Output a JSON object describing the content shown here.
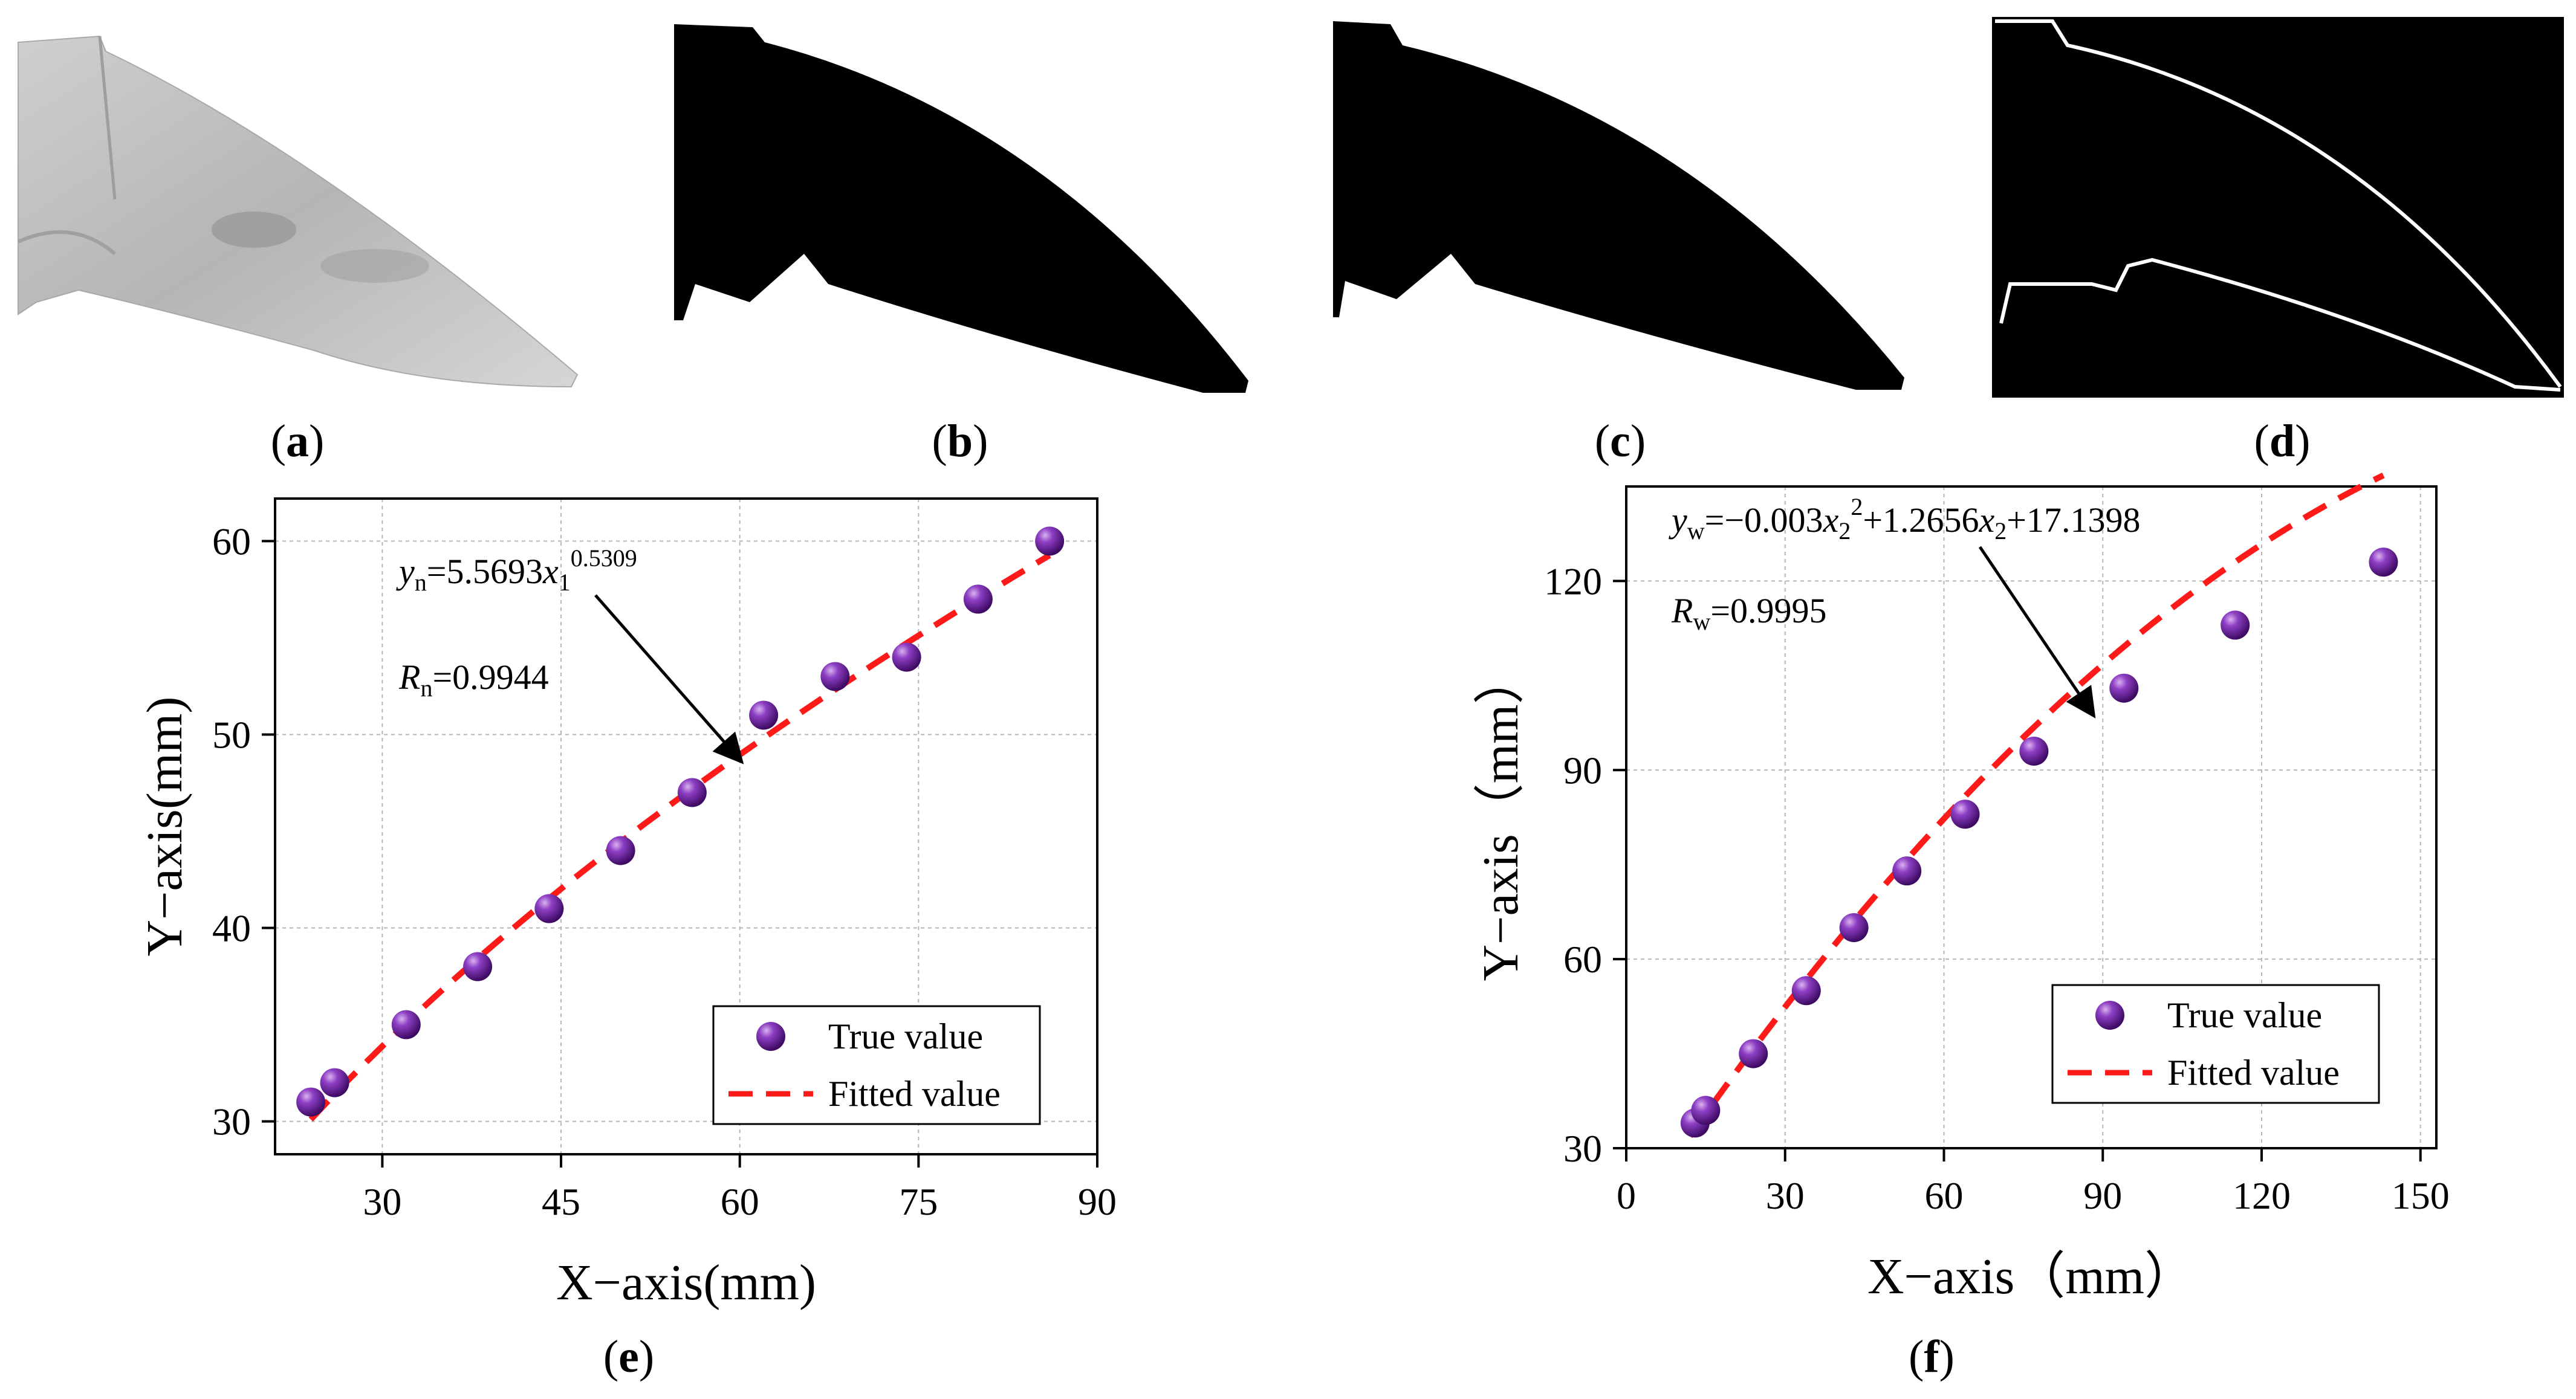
{
  "panels": {
    "a": {
      "label": "a",
      "description": "grayscale photo of claw"
    },
    "b": {
      "label": "b"
    },
    "c": {
      "label": "c"
    },
    "d": {
      "label": "d"
    },
    "e": {
      "label": "e"
    },
    "f": {
      "label": "f"
    }
  },
  "chart_data": [
    {
      "id": "e",
      "type": "scatter",
      "xlabel": "X−axis(mm)",
      "ylabel": "Y−axis(mm)",
      "xlim": [
        21,
        90
      ],
      "ylim": [
        28.3,
        62.2
      ],
      "xticks": [
        30,
        45,
        60,
        75,
        90
      ],
      "yticks": [
        30,
        40,
        50,
        60
      ],
      "grid": true,
      "legend_position": "bottom-right",
      "series": [
        {
          "name": "True value",
          "kind": "points",
          "color": "#6a1b9a",
          "x": [
            24,
            26,
            32,
            38,
            44,
            50,
            56,
            62,
            68,
            74,
            80,
            86
          ],
          "y": [
            31,
            32,
            35,
            38,
            41,
            44,
            47,
            51,
            53,
            54,
            57,
            60
          ]
        },
        {
          "name": "Fitted value",
          "kind": "dashed-line",
          "color": "#ff1a1a",
          "model": "power",
          "a": 5.5693,
          "b": 0.5309,
          "x_range": [
            24,
            86
          ]
        }
      ],
      "equation": {
        "y": "y",
        "ysub": "n",
        "rhs": "=5.5693",
        "x": "x",
        "xsub": "1",
        "exp": "0.5309"
      },
      "r_label": {
        "r": "R",
        "rsub": "n",
        "value": "=0.9944"
      },
      "arrow_target": {
        "x": 60,
        "y": 48.7
      }
    },
    {
      "id": "f",
      "type": "scatter",
      "xlabel": "X−axis（mm）",
      "ylabel": "Y−axis（mm）",
      "xlim": [
        0,
        153
      ],
      "ylim": [
        30,
        135
      ],
      "xticks": [
        0,
        30,
        60,
        90,
        120,
        150
      ],
      "yticks": [
        30,
        60,
        90,
        120
      ],
      "grid": true,
      "legend_position": "bottom-right",
      "series": [
        {
          "name": "True value",
          "kind": "points",
          "color": "#6a1b9a",
          "x": [
            13,
            15,
            24,
            34,
            43,
            53,
            64,
            77,
            94,
            115,
            143
          ],
          "y": [
            34,
            36,
            45,
            55,
            65,
            74,
            83,
            93,
            103,
            113,
            123
          ]
        },
        {
          "name": "Fitted value",
          "kind": "dashed-line",
          "color": "#ff1a1a",
          "model": "quadratic",
          "a": -0.003,
          "b": 1.2656,
          "c": 17.1398,
          "x_range": [
            12,
            143
          ]
        }
      ],
      "equation": {
        "y": "y",
        "ysub": "w",
        "rhs": "=−0.003",
        "x": "x",
        "xsub": "2",
        "exp": "2",
        "rest": "+1.2656",
        "x2": "x",
        "x2sub": "2",
        "tail": "+17.1398"
      },
      "r_label": {
        "r": "R",
        "rsub": "w",
        "value": "=0.9995"
      },
      "arrow_target": {
        "x": 88,
        "y": 99
      }
    }
  ]
}
